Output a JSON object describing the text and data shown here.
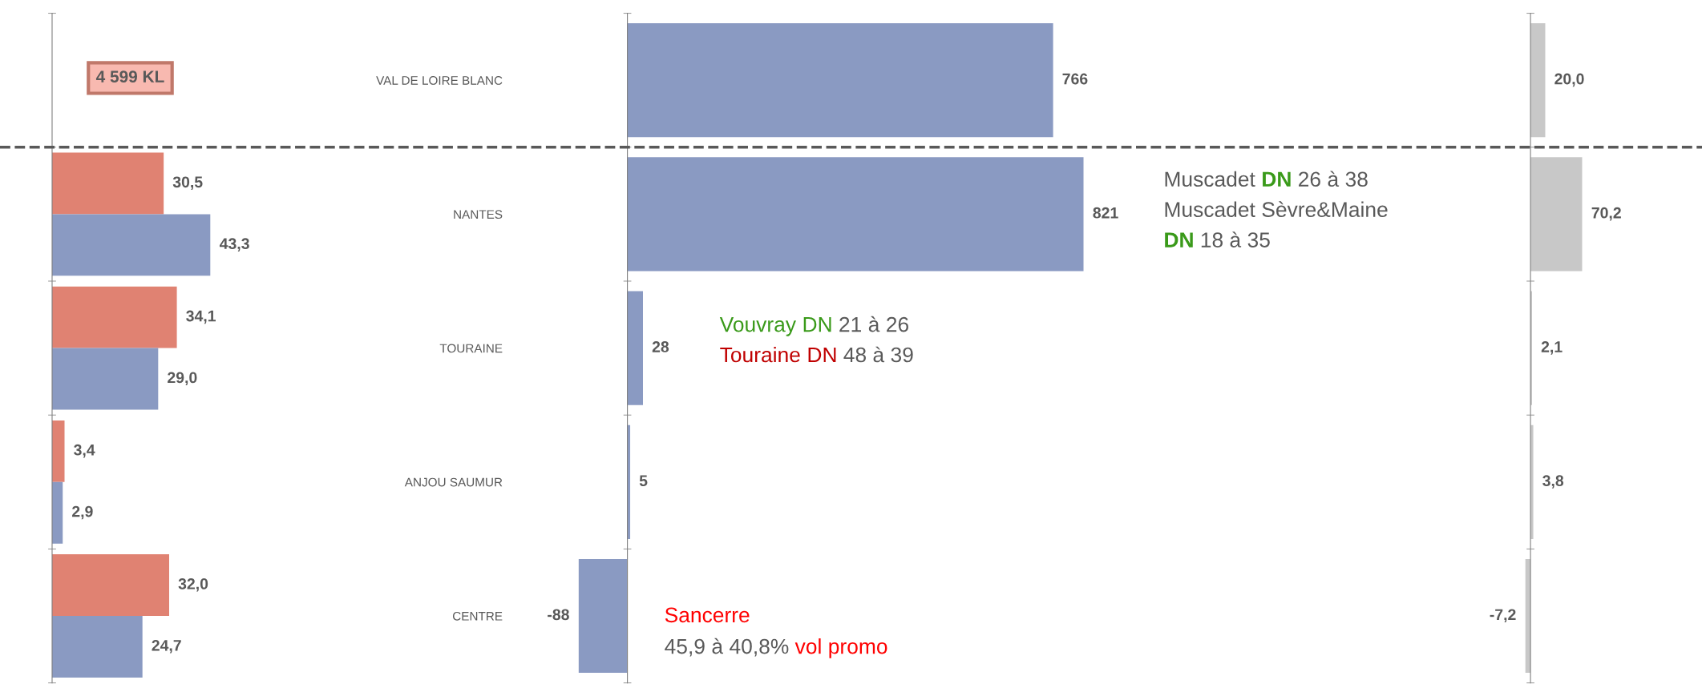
{
  "chart_data": [
    {
      "type": "bar",
      "orientation": "horizontal",
      "categories": [
        null,
        null,
        null,
        null
      ],
      "tick_labels": false,
      "series": [
        {
          "color": "#e08272",
          "values": [
            30.5,
            34.1,
            3.4,
            32.0
          ],
          "value_labels": [
            "30,5",
            "34,1",
            "3,4",
            "32,0"
          ]
        },
        {
          "color": "#8a9ac2",
          "values": [
            43.3,
            29.0,
            2.9,
            24.7
          ],
          "value_labels": [
            "43,3",
            "29,0",
            "2,9",
            "24,7"
          ]
        }
      ],
      "annotations": [
        "4 599 KL"
      ]
    },
    {
      "type": "bar",
      "orientation": "horizontal",
      "categories": [
        "VAL DE LOIRE BLANC",
        "NANTES",
        "TOURAINE",
        "ANJOU SAUMUR",
        "CENTRE"
      ],
      "tick_labels": "y",
      "color": "#8a9ac2",
      "values": [
        766,
        821,
        28,
        5,
        -88
      ],
      "value_labels": [
        "766",
        "821",
        "28",
        "5",
        "-88"
      ],
      "annotations": [
        "Muscadet DN 26 à 38",
        "Muscadet Sèvre&Maine",
        "DN 18 à 35",
        "Vouvray DN 21 à 26",
        "Touraine DN 48 à 39",
        "Sancerre",
        "45,9 à 40,8% vol promo"
      ]
    },
    {
      "type": "bar",
      "orientation": "horizontal",
      "categories": [
        null,
        null,
        null,
        null,
        null
      ],
      "tick_labels": false,
      "color": "#c8c8c8",
      "values": [
        20.0,
        70.2,
        2.1,
        3.8,
        -7.2
      ],
      "value_labels": [
        "20,0",
        "70,2",
        "2,1",
        "3,8",
        "-7,2"
      ]
    }
  ]
}
